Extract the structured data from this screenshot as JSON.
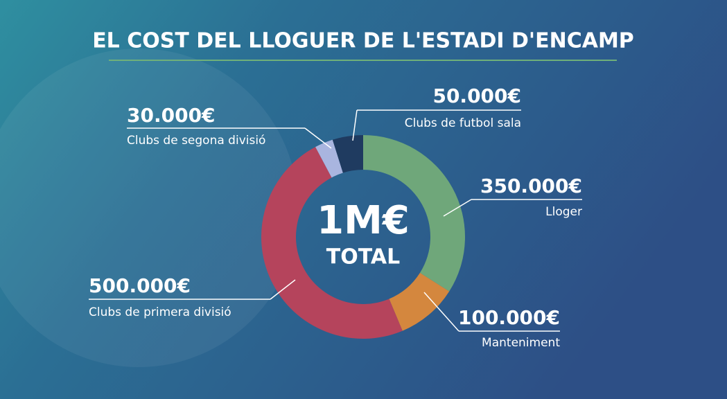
{
  "chart_data": {
    "type": "donut",
    "title": "EL COST DEL LLOGUER DE L'ESTADI D'ENCAMP",
    "categories": [
      "Lloger",
      "Manteniment",
      "Clubs de primera divisió",
      "Clubs de segona divisió",
      "Clubs de futbol sala"
    ],
    "values": [
      350000,
      100000,
      500000,
      30000,
      50000
    ],
    "value_labels": [
      "350.000€",
      "100.000€",
      "500.000€",
      "30.000€",
      "50.000€"
    ],
    "colors": [
      "#6fa77a",
      "#d4873e",
      "#b5445c",
      "#a9b5df",
      "#1f3b60"
    ],
    "center_label": "1M€",
    "center_sublabel": "TOTAL"
  }
}
